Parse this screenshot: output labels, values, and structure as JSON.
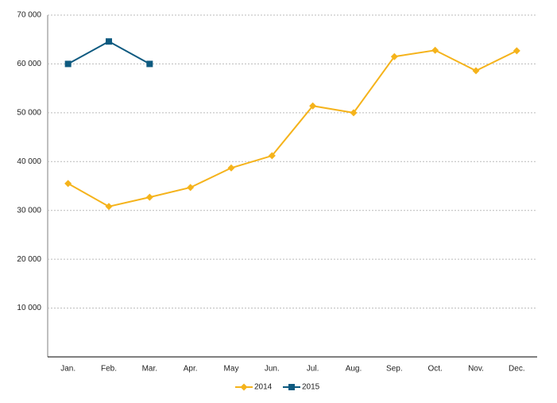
{
  "chart_data": {
    "type": "line",
    "categories": [
      "Jan.",
      "Feb.",
      "Mar.",
      "Apr.",
      "May",
      "Jun.",
      "Jul.",
      "Aug.",
      "Sep.",
      "Oct.",
      "Nov.",
      "Dec."
    ],
    "series": [
      {
        "name": "2014",
        "color": "#f5b31b",
        "marker": "diamond",
        "values": [
          35500,
          30800,
          32700,
          34700,
          38700,
          41200,
          51400,
          50000,
          61500,
          62800,
          58600,
          62700
        ]
      },
      {
        "name": "2015",
        "color": "#0e5a80",
        "marker": "square",
        "values": [
          60000,
          64600,
          60000,
          null,
          null,
          null,
          null,
          null,
          null,
          null,
          null,
          null
        ]
      }
    ],
    "ylim": [
      0,
      70000
    ],
    "yticks": [
      {
        "value": 10000,
        "label": "10 000"
      },
      {
        "value": 20000,
        "label": "20 000"
      },
      {
        "value": 30000,
        "label": "30 000"
      },
      {
        "value": 40000,
        "label": "40 000"
      },
      {
        "value": 50000,
        "label": "50 000"
      },
      {
        "value": 60000,
        "label": "60 000"
      },
      {
        "value": 70000,
        "label": "70 000"
      }
    ],
    "grid": true,
    "legend": "bottom"
  }
}
